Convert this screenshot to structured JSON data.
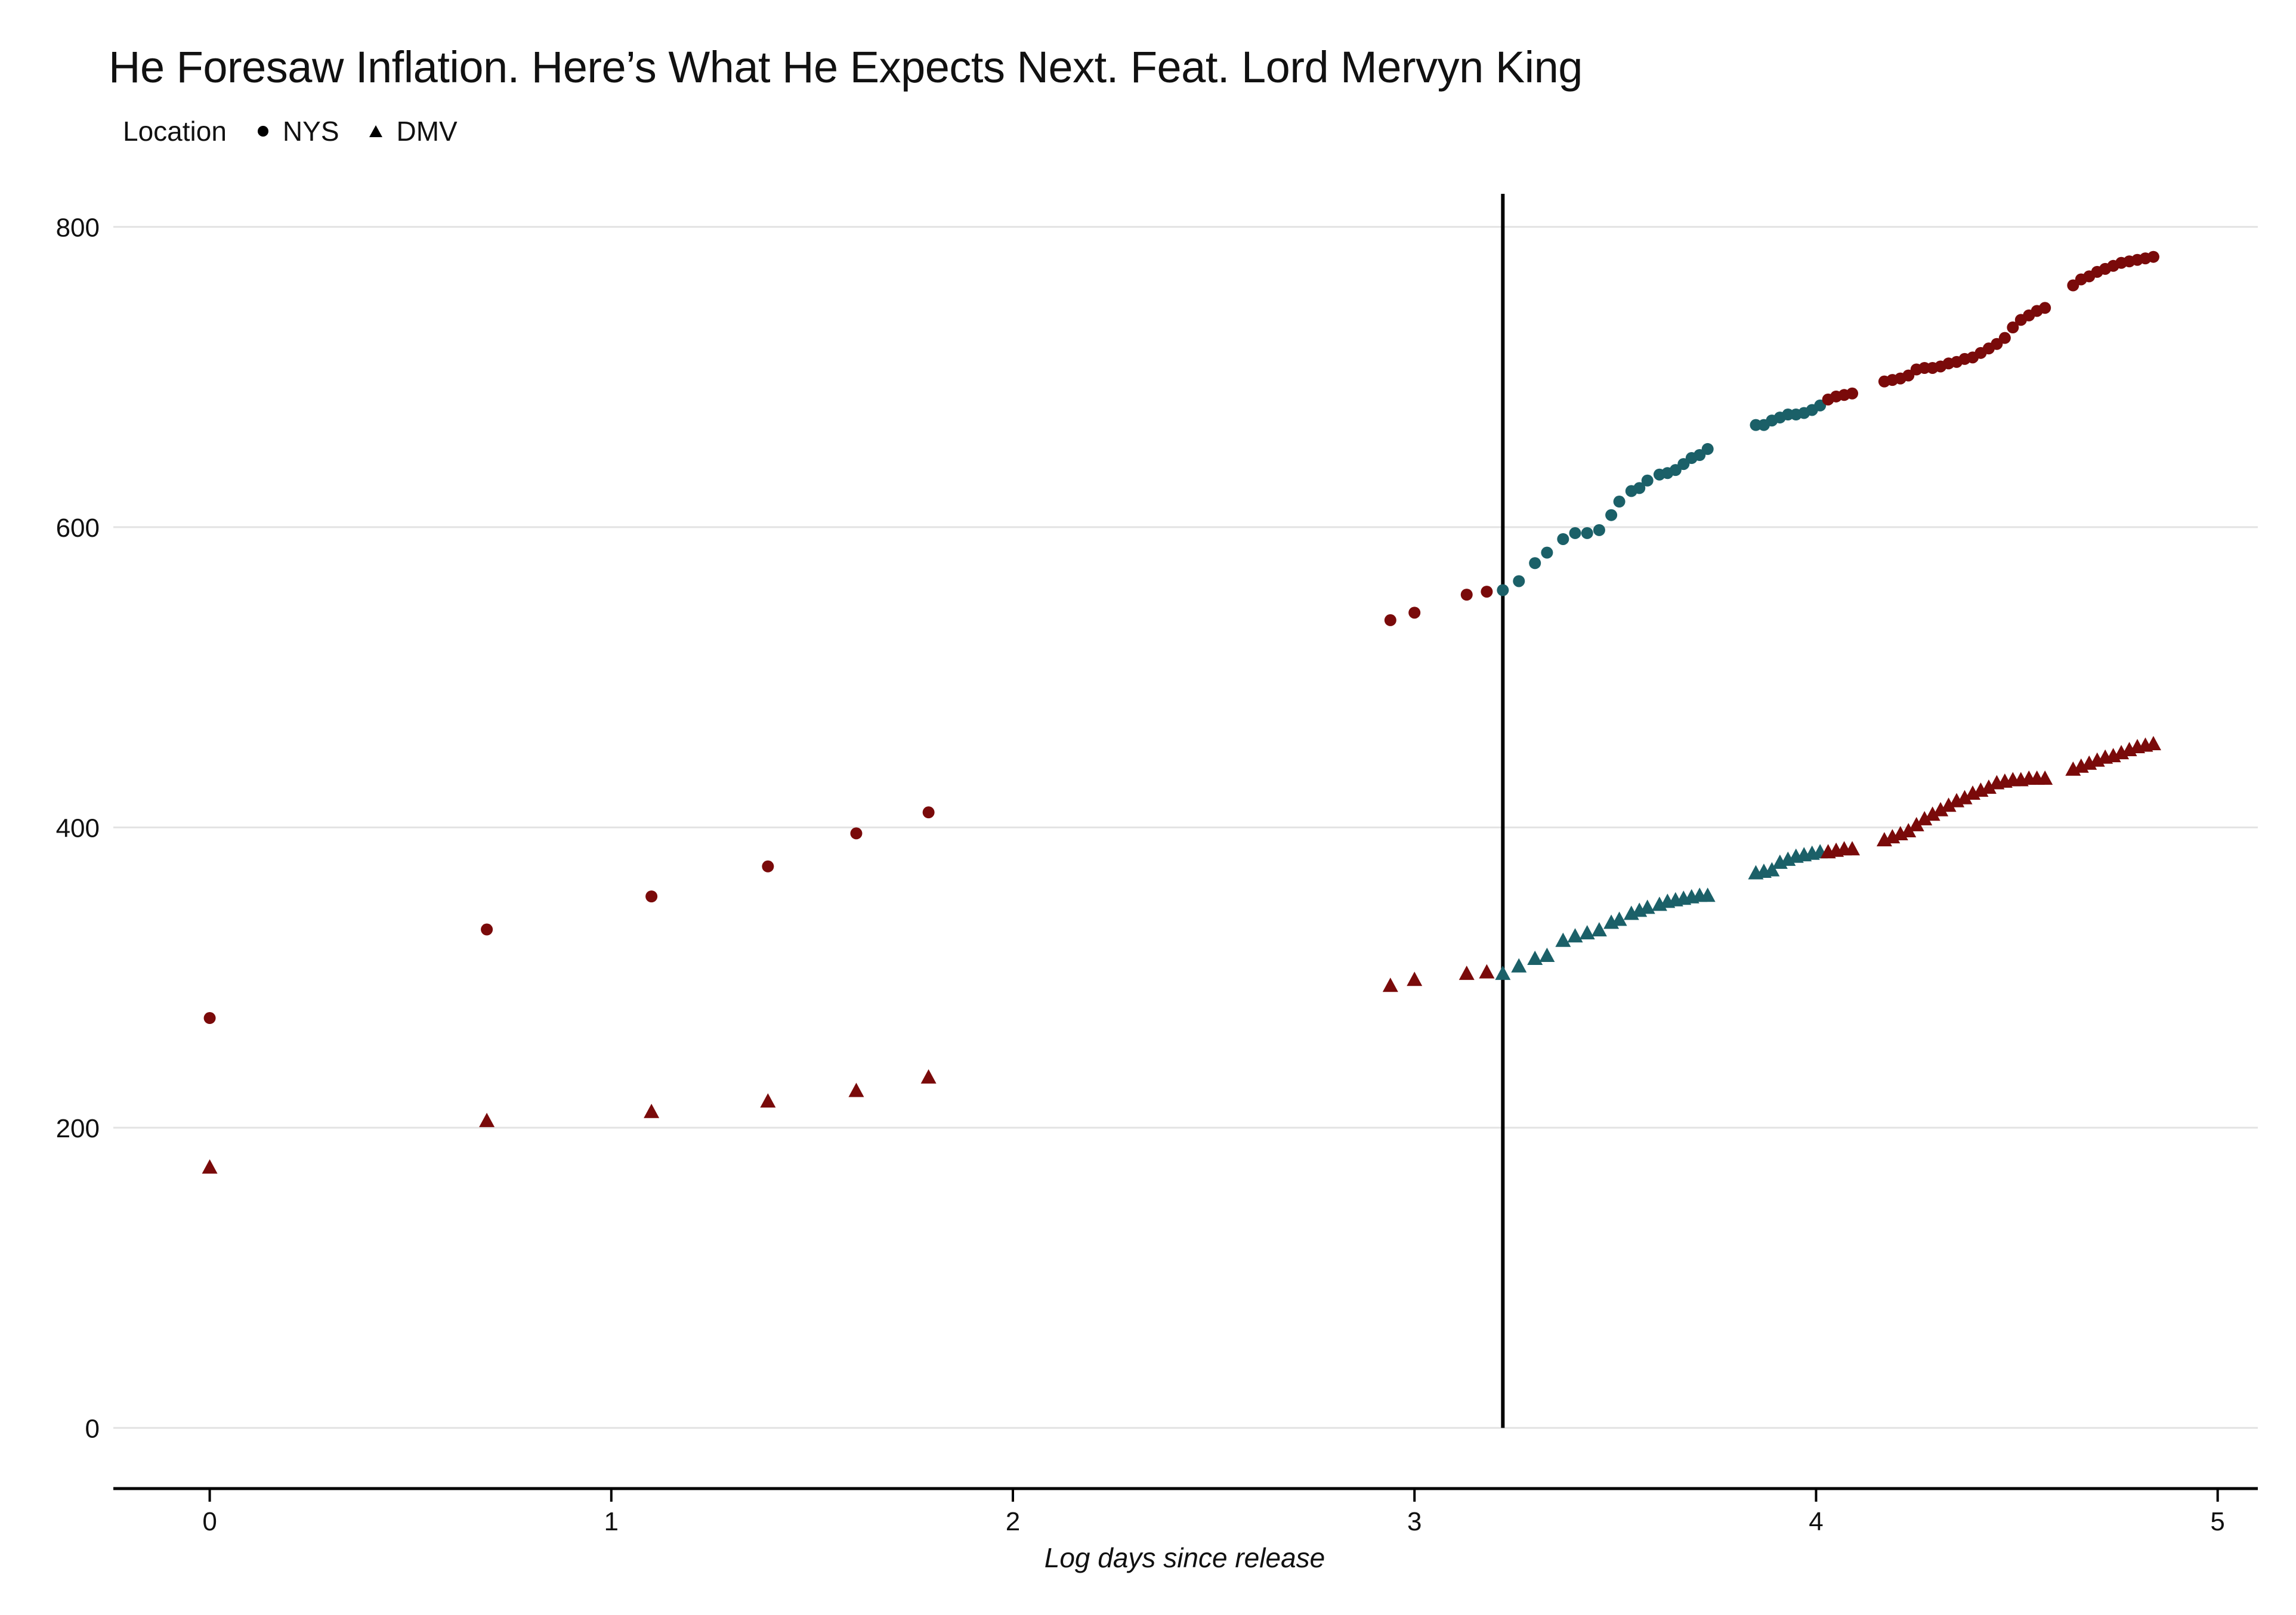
{
  "chart_data": {
    "type": "scatter",
    "title": "He Foresaw Inflation. Here’s What He Expects Next. Feat. Lord Mervyn King",
    "xlabel": "Log days since release",
    "ylabel": "",
    "xlim": [
      -0.24,
      5.1
    ],
    "ylim": [
      -40,
      820
    ],
    "x_ticks": [
      0,
      1,
      2,
      3,
      4,
      5
    ],
    "y_ticks": [
      0,
      200,
      400,
      600,
      800
    ],
    "grid": "horizontal",
    "legend": {
      "title": "Location",
      "position": "top-left",
      "items": [
        {
          "name": "NYS",
          "shape": "circle"
        },
        {
          "name": "DMV",
          "shape": "triangle"
        }
      ]
    },
    "vline_x": 3.22,
    "colors": {
      "red": "#7a0a0a",
      "teal": "#1b6068",
      "vline": "#000000",
      "grid": "#e3e3e3",
      "axis": "#000000"
    },
    "series": [
      {
        "name": "NYS",
        "shape": "circle",
        "segments": [
          {
            "color": "red",
            "x": [
              0,
              0.69,
              1.1,
              1.39,
              1.61,
              1.79,
              2.94,
              3.0,
              3.13,
              3.18
            ],
            "y": [
              273,
              332,
              354,
              374,
              396,
              410,
              538,
              543,
              555,
              557
            ]
          },
          {
            "color": "teal",
            "x": [
              3.22,
              3.26,
              3.3,
              3.33,
              3.37,
              3.4,
              3.43,
              3.46,
              3.49,
              3.51,
              3.54,
              3.56,
              3.58,
              3.61,
              3.63,
              3.65,
              3.67,
              3.69,
              3.71,
              3.73,
              3.85,
              3.87,
              3.89,
              3.91,
              3.93,
              3.95,
              3.97,
              3.99,
              4.01
            ],
            "y": [
              558,
              564,
              576,
              583,
              592,
              596,
              596,
              598,
              608,
              617,
              624,
              626,
              631,
              635,
              636,
              638,
              642,
              646,
              648,
              652,
              668,
              668,
              671,
              673,
              675,
              675,
              676,
              678,
              681
            ]
          },
          {
            "color": "red",
            "x": [
              4.03,
              4.05,
              4.07,
              4.09,
              4.17,
              4.19,
              4.21,
              4.23,
              4.25,
              4.27,
              4.29,
              4.31,
              4.33,
              4.35,
              4.37,
              4.39,
              4.41,
              4.43,
              4.45,
              4.47,
              4.49,
              4.51,
              4.53,
              4.55,
              4.57,
              4.64,
              4.66,
              4.68,
              4.7,
              4.72,
              4.74,
              4.76,
              4.78,
              4.8,
              4.82,
              4.84
            ],
            "y": [
              685,
              687,
              688,
              689,
              697,
              698,
              699,
              701,
              705,
              706,
              706,
              707,
              709,
              710,
              712,
              713,
              716,
              719,
              722,
              726,
              733,
              738,
              741,
              744,
              746,
              761,
              765,
              767,
              770,
              772,
              774,
              776,
              777,
              778,
              779,
              780
            ]
          }
        ]
      },
      {
        "name": "DMV",
        "shape": "triangle",
        "segments": [
          {
            "color": "red",
            "x": [
              0,
              0.69,
              1.1,
              1.39,
              1.61,
              1.79,
              2.94,
              3.0,
              3.13,
              3.18
            ],
            "y": [
              173,
              204,
              210,
              217,
              224,
              233,
              294,
              298,
              302,
              303
            ]
          },
          {
            "color": "teal",
            "x": [
              3.22,
              3.26,
              3.3,
              3.33,
              3.37,
              3.4,
              3.43,
              3.46,
              3.49,
              3.51,
              3.54,
              3.56,
              3.58,
              3.61,
              3.63,
              3.65,
              3.67,
              3.69,
              3.71,
              3.73,
              3.85,
              3.87,
              3.89,
              3.91,
              3.93,
              3.95,
              3.97,
              3.99,
              4.01
            ],
            "y": [
              302,
              307,
              312,
              314,
              324,
              327,
              329,
              331,
              336,
              338,
              342,
              344,
              346,
              348,
              350,
              351,
              352,
              353,
              354,
              354,
              369,
              370,
              371,
              376,
              378,
              380,
              381,
              382,
              383
            ]
          },
          {
            "color": "red",
            "x": [
              4.03,
              4.05,
              4.07,
              4.09,
              4.17,
              4.19,
              4.21,
              4.23,
              4.25,
              4.27,
              4.29,
              4.31,
              4.33,
              4.35,
              4.37,
              4.39,
              4.41,
              4.43,
              4.45,
              4.47,
              4.49,
              4.51,
              4.53,
              4.55,
              4.57,
              4.64,
              4.66,
              4.68,
              4.7,
              4.72,
              4.74,
              4.76,
              4.78,
              4.8,
              4.82,
              4.84
            ],
            "y": [
              383,
              384,
              385,
              385,
              391,
              393,
              395,
              397,
              401,
              405,
              408,
              411,
              414,
              417,
              419,
              422,
              424,
              426,
              429,
              430,
              431,
              431,
              432,
              432,
              432,
              438,
              440,
              442,
              444,
              446,
              447,
              449,
              451,
              453,
              454,
              455
            ]
          }
        ]
      }
    ]
  }
}
